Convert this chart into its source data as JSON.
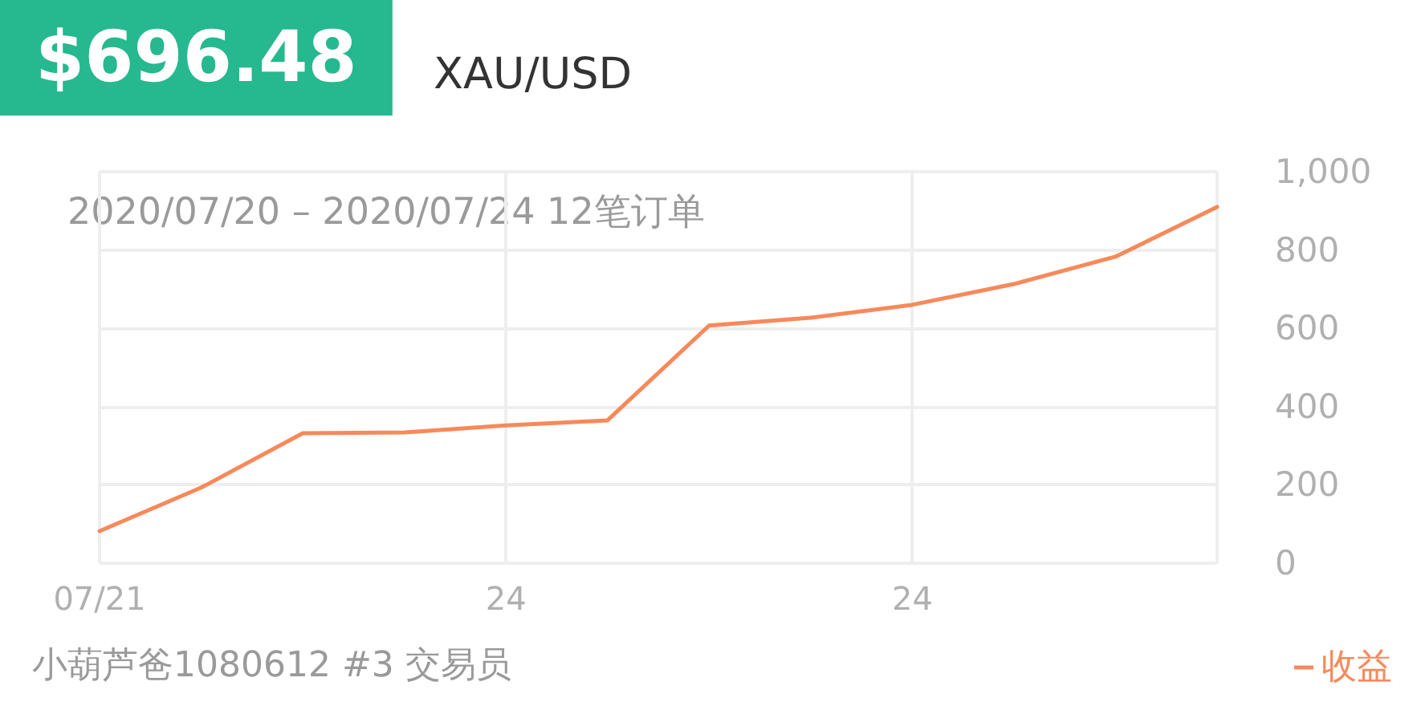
{
  "chart_data": {
    "type": "line",
    "title": "$696.48",
    "subtitle": "XAU/USD",
    "annotations": [
      "2020/07/20 – 2020/07/24 12笔订单",
      "小葫芦爸1080612 #3 交易员"
    ],
    "categories": [
      "07/21",
      null,
      null,
      null,
      "24",
      null,
      null,
      null,
      "24",
      null,
      null,
      null
    ],
    "series": [
      {
        "name": "收益",
        "color": "#f7895a",
        "values": [
          82,
          193,
          332,
          334,
          352,
          365,
          607,
          627,
          660,
          713,
          783,
          910
        ]
      }
    ],
    "ylim": [
      0,
      1000
    ],
    "yticks": [
      0,
      200,
      400,
      600,
      800,
      {
        "value": 1000,
        "label": "1,000"
      }
    ],
    "grid": true,
    "legend": "bottom right",
    "marker": "none",
    "line_style": "solid"
  }
}
